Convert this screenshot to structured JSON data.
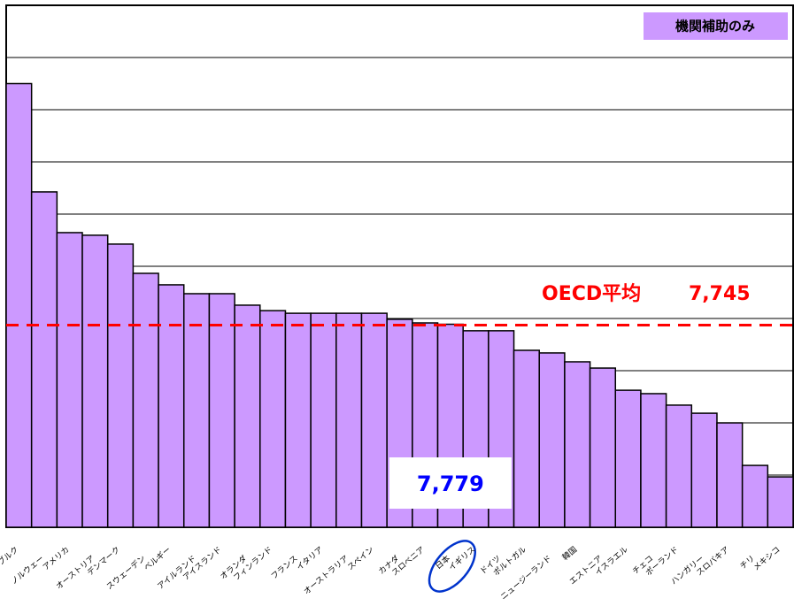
{
  "chart_data": {
    "type": "bar",
    "note": "機関補助のみ",
    "categories": [
      "ブルク",
      "ノルウェー",
      "アメリカ",
      "オーストリア",
      "デンマーク",
      "スウェーデン",
      "ベルギー",
      "アイルランド",
      "アイスランド",
      "オランダ",
      "フィンランド",
      "フランス",
      "イタリア",
      "オーストラリア",
      "スペイン",
      "カナダ",
      "スロベニア",
      "日本",
      "イギリス",
      "ドイツ",
      "ポルトガル",
      "ニュージーランド",
      "韓国",
      "エストニア",
      "イスラエル",
      "チェコ",
      "ポーランド",
      "ハンガリー",
      "スロバキア",
      "チリ",
      "メキシコ"
    ],
    "values": [
      17000,
      12850,
      11290,
      11190,
      10850,
      9730,
      9290,
      8950,
      8950,
      8510,
      8300,
      8200,
      8200,
      8200,
      8200,
      7970,
      7830,
      7779,
      7530,
      7530,
      6780,
      6680,
      6340,
      6100,
      5250,
      5120,
      4680,
      4370,
      4000,
      2370,
      1930
    ],
    "value_labels": [
      null,
      null,
      null,
      null,
      null,
      null,
      null,
      null,
      null,
      null,
      null,
      null,
      null,
      null,
      null,
      null,
      null,
      "7,779",
      null,
      null,
      null,
      null,
      null,
      null,
      null,
      null,
      null,
      null,
      null,
      null,
      null
    ],
    "color": "#cc99ff",
    "average": {
      "label": "OECD平均",
      "value": 7745,
      "value_label": "7,745",
      "color": "#ff0000"
    },
    "ylim": [
      0,
      20000
    ],
    "yticks": [
      0,
      2000,
      4000,
      6000,
      8000,
      10000,
      12000,
      14000,
      16000,
      18000,
      20000
    ],
    "grid": true
  }
}
